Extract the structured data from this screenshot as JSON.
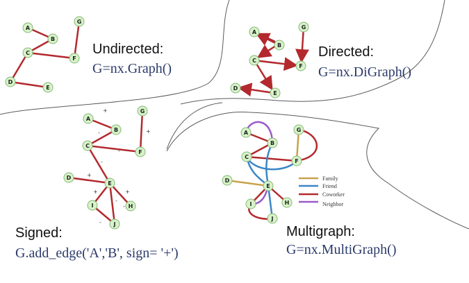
{
  "colors": {
    "edge": "#b22a2e",
    "node_fill": "#d6f3c8",
    "node_stroke": "#86b77a",
    "divider": "#5a5a5a",
    "title_text": "#111111",
    "code_text": "#2b3a6b"
  },
  "panels": {
    "undirected": {
      "title": "Undirected:",
      "code": "G=nx.Graph()",
      "nodes": [
        "A",
        "B",
        "C",
        "G",
        "F",
        "D",
        "E"
      ]
    },
    "directed": {
      "title": "Directed:",
      "code": "G=nx.DiGraph()",
      "nodes": [
        "A",
        "B",
        "C",
        "G",
        "F",
        "D",
        "E"
      ]
    },
    "signed": {
      "title": "Signed:",
      "code": "G.add_edge('A','B', sign= '+')",
      "nodes": [
        "A",
        "B",
        "C",
        "G",
        "F",
        "D",
        "E",
        "I",
        "H",
        "J"
      ],
      "signs": [
        "+",
        "-",
        "-",
        "+",
        "-",
        "+",
        "+",
        "+",
        "-",
        "-",
        "-"
      ]
    },
    "multigraph": {
      "title": "Multigraph:",
      "code": "G=nx.MultiGraph()",
      "nodes": [
        "A",
        "B",
        "C",
        "G",
        "F",
        "D",
        "E",
        "I",
        "H",
        "J"
      ],
      "legend": [
        {
          "label": "Family",
          "color": "#c8a24a"
        },
        {
          "label": "Friend",
          "color": "#3a86c8"
        },
        {
          "label": "Coworker",
          "color": "#b22a2e"
        },
        {
          "label": "Neighbor",
          "color": "#9a5ac8"
        }
      ]
    }
  }
}
